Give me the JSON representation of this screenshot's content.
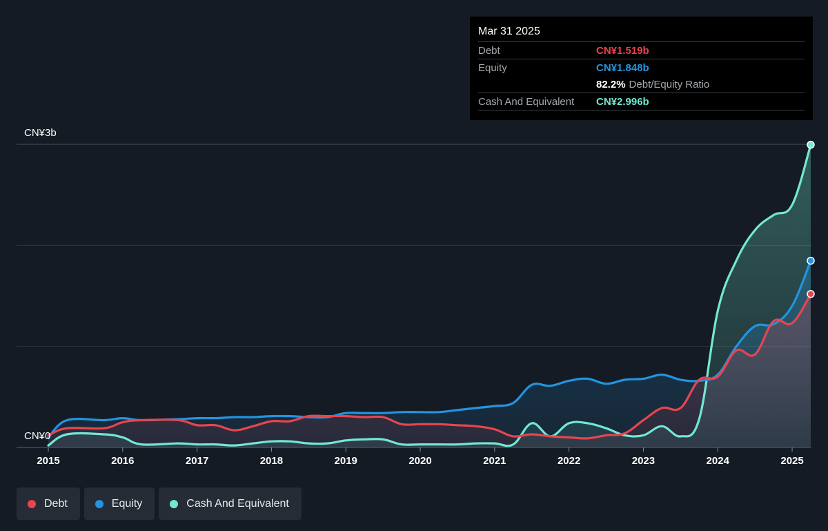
{
  "colors": {
    "debt": "#e64550",
    "equity": "#2394df",
    "cash": "#72e8d2"
  },
  "tooltip": {
    "date": "Mar 31 2025",
    "debt_label": "Debt",
    "debt_value": "CN¥1.519b",
    "equity_label": "Equity",
    "equity_value": "CN¥1.848b",
    "ratio_value": "82.2%",
    "ratio_label": "Debt/Equity Ratio",
    "cash_label": "Cash And Equivalent",
    "cash_value": "CN¥2.996b"
  },
  "legend": {
    "debt": "Debt",
    "equity": "Equity",
    "cash": "Cash And Equivalent"
  },
  "chart_data": {
    "type": "area",
    "title": "",
    "xlabel": "",
    "ylabel": "",
    "xlim": [
      2015.0,
      2025.25
    ],
    "ylim": [
      0,
      3.0
    ],
    "y_unit": "CN¥ billions",
    "grid": true,
    "legend_position": "bottom-left",
    "y_tick_labels": [
      {
        "value": 3.0,
        "label": "CN¥3b"
      },
      {
        "value": 0.0,
        "label": "CN¥0"
      }
    ],
    "x_ticks": [
      {
        "value": 2015,
        "label": "2015"
      },
      {
        "value": 2016,
        "label": "2016"
      },
      {
        "value": 2017,
        "label": "2017"
      },
      {
        "value": 2018,
        "label": "2018"
      },
      {
        "value": 2019,
        "label": "2019"
      },
      {
        "value": 2020,
        "label": "2020"
      },
      {
        "value": 2021,
        "label": "2021"
      },
      {
        "value": 2022,
        "label": "2022"
      },
      {
        "value": 2023,
        "label": "2023"
      },
      {
        "value": 2024,
        "label": "2024"
      },
      {
        "value": 2025,
        "label": "2025"
      }
    ],
    "series": [
      {
        "name": "Debt",
        "key": "debt",
        "points": [
          [
            2015.0,
            0.12
          ],
          [
            2015.25,
            0.19
          ],
          [
            2015.75,
            0.19
          ],
          [
            2016.0,
            0.25
          ],
          [
            2016.25,
            0.27
          ],
          [
            2016.75,
            0.27
          ],
          [
            2017.0,
            0.22
          ],
          [
            2017.25,
            0.22
          ],
          [
            2017.5,
            0.17
          ],
          [
            2017.75,
            0.21
          ],
          [
            2018.0,
            0.26
          ],
          [
            2018.25,
            0.26
          ],
          [
            2018.5,
            0.31
          ],
          [
            2018.75,
            0.31
          ],
          [
            2019.0,
            0.31
          ],
          [
            2019.25,
            0.3
          ],
          [
            2019.5,
            0.3
          ],
          [
            2019.75,
            0.23
          ],
          [
            2020.0,
            0.23
          ],
          [
            2020.25,
            0.23
          ],
          [
            2020.5,
            0.22
          ],
          [
            2020.75,
            0.21
          ],
          [
            2021.0,
            0.18
          ],
          [
            2021.25,
            0.11
          ],
          [
            2021.5,
            0.13
          ],
          [
            2021.75,
            0.11
          ],
          [
            2022.0,
            0.1
          ],
          [
            2022.25,
            0.09
          ],
          [
            2022.5,
            0.12
          ],
          [
            2022.75,
            0.14
          ],
          [
            2023.0,
            0.27
          ],
          [
            2023.25,
            0.39
          ],
          [
            2023.5,
            0.39
          ],
          [
            2023.75,
            0.67
          ],
          [
            2024.0,
            0.7
          ],
          [
            2024.25,
            0.96
          ],
          [
            2024.5,
            0.92
          ],
          [
            2024.75,
            1.25
          ],
          [
            2025.0,
            1.23
          ],
          [
            2025.25,
            1.519
          ]
        ]
      },
      {
        "name": "Equity",
        "key": "equity",
        "points": [
          [
            2015.0,
            0.1
          ],
          [
            2015.25,
            0.27
          ],
          [
            2015.75,
            0.27
          ],
          [
            2016.0,
            0.29
          ],
          [
            2016.25,
            0.27
          ],
          [
            2016.75,
            0.28
          ],
          [
            2017.0,
            0.29
          ],
          [
            2017.25,
            0.29
          ],
          [
            2017.5,
            0.3
          ],
          [
            2017.75,
            0.3
          ],
          [
            2018.0,
            0.31
          ],
          [
            2018.25,
            0.31
          ],
          [
            2018.5,
            0.3
          ],
          [
            2018.75,
            0.3
          ],
          [
            2019.0,
            0.34
          ],
          [
            2019.25,
            0.34
          ],
          [
            2019.5,
            0.34
          ],
          [
            2019.75,
            0.35
          ],
          [
            2020.0,
            0.35
          ],
          [
            2020.25,
            0.35
          ],
          [
            2020.5,
            0.37
          ],
          [
            2020.75,
            0.39
          ],
          [
            2021.0,
            0.41
          ],
          [
            2021.25,
            0.44
          ],
          [
            2021.5,
            0.62
          ],
          [
            2021.75,
            0.61
          ],
          [
            2022.0,
            0.66
          ],
          [
            2022.25,
            0.68
          ],
          [
            2022.5,
            0.63
          ],
          [
            2022.75,
            0.67
          ],
          [
            2023.0,
            0.68
          ],
          [
            2023.25,
            0.72
          ],
          [
            2023.5,
            0.67
          ],
          [
            2023.75,
            0.66
          ],
          [
            2024.0,
            0.72
          ],
          [
            2024.25,
            1.0
          ],
          [
            2024.5,
            1.2
          ],
          [
            2024.75,
            1.22
          ],
          [
            2025.0,
            1.4
          ],
          [
            2025.25,
            1.848
          ]
        ]
      },
      {
        "name": "Cash And Equivalent",
        "key": "cash",
        "points": [
          [
            2015.0,
            0.02
          ],
          [
            2015.25,
            0.13
          ],
          [
            2015.75,
            0.13
          ],
          [
            2016.0,
            0.1
          ],
          [
            2016.25,
            0.03
          ],
          [
            2016.75,
            0.04
          ],
          [
            2017.0,
            0.03
          ],
          [
            2017.25,
            0.03
          ],
          [
            2017.5,
            0.02
          ],
          [
            2017.75,
            0.04
          ],
          [
            2018.0,
            0.06
          ],
          [
            2018.25,
            0.06
          ],
          [
            2018.5,
            0.04
          ],
          [
            2018.75,
            0.04
          ],
          [
            2019.0,
            0.07
          ],
          [
            2019.25,
            0.08
          ],
          [
            2019.5,
            0.08
          ],
          [
            2019.75,
            0.03
          ],
          [
            2020.0,
            0.03
          ],
          [
            2020.25,
            0.03
          ],
          [
            2020.5,
            0.03
          ],
          [
            2020.75,
            0.04
          ],
          [
            2021.0,
            0.04
          ],
          [
            2021.25,
            0.03
          ],
          [
            2021.5,
            0.24
          ],
          [
            2021.75,
            0.11
          ],
          [
            2022.0,
            0.24
          ],
          [
            2022.25,
            0.24
          ],
          [
            2022.5,
            0.19
          ],
          [
            2022.75,
            0.12
          ],
          [
            2023.0,
            0.12
          ],
          [
            2023.25,
            0.21
          ],
          [
            2023.5,
            0.11
          ],
          [
            2023.75,
            0.28
          ],
          [
            2024.0,
            1.35
          ],
          [
            2024.25,
            1.85
          ],
          [
            2024.5,
            2.15
          ],
          [
            2024.75,
            2.3
          ],
          [
            2025.0,
            2.4
          ],
          [
            2025.25,
            2.996
          ]
        ]
      }
    ]
  }
}
